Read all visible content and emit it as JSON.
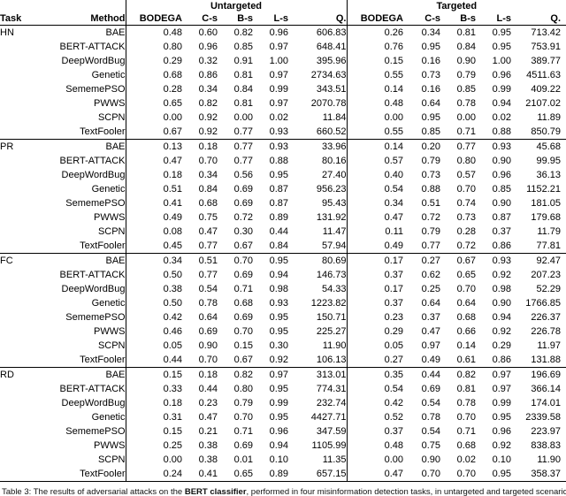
{
  "table": {
    "group_headers": {
      "untargeted": "Untargeted",
      "targeted": "Targeted"
    },
    "col_headers": {
      "task": "Task",
      "method": "Method"
    },
    "metrics": [
      "BODEGA",
      "C-s",
      "B-s",
      "L-s",
      "Q."
    ],
    "sections": [
      {
        "task": "HN",
        "rows": [
          {
            "method": "BAE",
            "u": [
              "0.48",
              "0.60",
              "0.82",
              "0.96",
              "606.83"
            ],
            "ub": [
              0,
              0,
              0,
              0,
              0
            ],
            "t": [
              "0.26",
              "0.34",
              "0.81",
              "0.95",
              "713.42"
            ],
            "tb": [
              0,
              0,
              0,
              0,
              0
            ]
          },
          {
            "method": "BERT-ATTACK",
            "u": [
              "0.80",
              "0.96",
              "0.85",
              "0.97",
              "648.41"
            ],
            "ub": [
              1,
              1,
              0,
              0,
              0
            ],
            "t": [
              "0.76",
              "0.95",
              "0.84",
              "0.95",
              "753.91"
            ],
            "tb": [
              1,
              1,
              0,
              0,
              0
            ]
          },
          {
            "method": "DeepWordBug",
            "u": [
              "0.29",
              "0.32",
              "0.91",
              "1.00",
              "395.96"
            ],
            "ub": [
              0,
              0,
              1,
              1,
              0
            ],
            "t": [
              "0.15",
              "0.16",
              "0.90",
              "1.00",
              "389.77"
            ],
            "tb": [
              0,
              0,
              1,
              1,
              0
            ]
          },
          {
            "method": "Genetic",
            "u": [
              "0.68",
              "0.86",
              "0.81",
              "0.97",
              "2734.63"
            ],
            "ub": [
              0,
              0,
              0,
              0,
              0
            ],
            "t": [
              "0.55",
              "0.73",
              "0.79",
              "0.96",
              "4511.63"
            ],
            "tb": [
              0,
              0,
              0,
              0,
              0
            ]
          },
          {
            "method": "SememePSO",
            "u": [
              "0.28",
              "0.34",
              "0.84",
              "0.99",
              "343.51"
            ],
            "ub": [
              0,
              0,
              0,
              0,
              0
            ],
            "t": [
              "0.14",
              "0.16",
              "0.85",
              "0.99",
              "409.22"
            ],
            "tb": [
              0,
              0,
              0,
              0,
              0
            ]
          },
          {
            "method": "PWWS",
            "u": [
              "0.65",
              "0.82",
              "0.81",
              "0.97",
              "2070.78"
            ],
            "ub": [
              0,
              0,
              0,
              0,
              0
            ],
            "t": [
              "0.48",
              "0.64",
              "0.78",
              "0.94",
              "2107.02"
            ],
            "tb": [
              0,
              0,
              0,
              0,
              0
            ]
          },
          {
            "method": "SCPN",
            "u": [
              "0.00",
              "0.92",
              "0.00",
              "0.02",
              "11.84"
            ],
            "ub": [
              0,
              0,
              0,
              0,
              0
            ],
            "t": [
              "0.00",
              "0.95",
              "0.00",
              "0.02",
              "11.89"
            ],
            "tb": [
              0,
              1,
              0,
              0,
              0
            ]
          },
          {
            "method": "TextFooler",
            "u": [
              "0.67",
              "0.92",
              "0.77",
              "0.93",
              "660.52"
            ],
            "ub": [
              0,
              0,
              0,
              0,
              0
            ],
            "t": [
              "0.55",
              "0.85",
              "0.71",
              "0.88",
              "850.79"
            ],
            "tb": [
              0,
              0,
              0,
              0,
              0
            ]
          }
        ]
      },
      {
        "task": "PR",
        "rows": [
          {
            "method": "BAE",
            "u": [
              "0.13",
              "0.18",
              "0.77",
              "0.93",
              "33.96"
            ],
            "ub": [
              0,
              0,
              1,
              0,
              0
            ],
            "t": [
              "0.14",
              "0.20",
              "0.77",
              "0.93",
              "45.68"
            ],
            "tb": [
              0,
              0,
              0,
              0,
              0
            ]
          },
          {
            "method": "BERT-ATTACK",
            "u": [
              "0.47",
              "0.70",
              "0.77",
              "0.88",
              "80.16"
            ],
            "ub": [
              0,
              0,
              0,
              0,
              0
            ],
            "t": [
              "0.57",
              "0.79",
              "0.80",
              "0.90",
              "99.95"
            ],
            "tb": [
              1,
              0,
              1,
              0,
              0
            ]
          },
          {
            "method": "DeepWordBug",
            "u": [
              "0.18",
              "0.34",
              "0.56",
              "0.95",
              "27.40"
            ],
            "ub": [
              0,
              0,
              0,
              1,
              0
            ],
            "t": [
              "0.40",
              "0.73",
              "0.57",
              "0.96",
              "36.13"
            ],
            "tb": [
              0,
              0,
              0,
              1,
              0
            ]
          },
          {
            "method": "Genetic",
            "u": [
              "0.51",
              "0.84",
              "0.69",
              "0.87",
              "956.23"
            ],
            "ub": [
              1,
              1,
              0,
              0,
              0
            ],
            "t": [
              "0.54",
              "0.88",
              "0.70",
              "0.85",
              "1152.21"
            ],
            "tb": [
              0,
              1,
              0,
              0,
              0
            ]
          },
          {
            "method": "SememePSO",
            "u": [
              "0.41",
              "0.68",
              "0.69",
              "0.87",
              "95.43"
            ],
            "ub": [
              0,
              0,
              0,
              0,
              0
            ],
            "t": [
              "0.34",
              "0.51",
              "0.74",
              "0.90",
              "181.05"
            ],
            "tb": [
              0,
              0,
              0,
              0,
              0
            ]
          },
          {
            "method": "PWWS",
            "u": [
              "0.49",
              "0.75",
              "0.72",
              "0.89",
              "131.92"
            ],
            "ub": [
              0,
              0,
              0,
              0,
              0
            ],
            "t": [
              "0.47",
              "0.72",
              "0.73",
              "0.87",
              "179.68"
            ],
            "tb": [
              0,
              0,
              0,
              0,
              0
            ]
          },
          {
            "method": "SCPN",
            "u": [
              "0.08",
              "0.47",
              "0.30",
              "0.44",
              "11.47"
            ],
            "ub": [
              0,
              0,
              0,
              0,
              0
            ],
            "t": [
              "0.11",
              "0.79",
              "0.28",
              "0.37",
              "11.79"
            ],
            "tb": [
              0,
              0,
              0,
              0,
              0
            ]
          },
          {
            "method": "TextFooler",
            "u": [
              "0.45",
              "0.77",
              "0.67",
              "0.84",
              "57.94"
            ],
            "ub": [
              0,
              0,
              0,
              0,
              0
            ],
            "t": [
              "0.49",
              "0.77",
              "0.72",
              "0.86",
              "77.81"
            ],
            "tb": [
              0,
              0,
              0,
              0,
              0
            ]
          }
        ]
      },
      {
        "task": "FC",
        "rows": [
          {
            "method": "BAE",
            "u": [
              "0.34",
              "0.51",
              "0.70",
              "0.95",
              "80.69"
            ],
            "ub": [
              0,
              0,
              0,
              0,
              0
            ],
            "t": [
              "0.17",
              "0.27",
              "0.67",
              "0.93",
              "92.47"
            ],
            "tb": [
              0,
              0,
              0,
              0,
              0
            ]
          },
          {
            "method": "BERT-ATTACK",
            "u": [
              "0.50",
              "0.77",
              "0.69",
              "0.94",
              "146.73"
            ],
            "ub": [
              1,
              0,
              0,
              0,
              0
            ],
            "t": [
              "0.37",
              "0.62",
              "0.65",
              "0.92",
              "207.23"
            ],
            "tb": [
              1,
              0,
              0,
              0,
              0
            ]
          },
          {
            "method": "DeepWordBug",
            "u": [
              "0.38",
              "0.54",
              "0.71",
              "0.98",
              "54.33"
            ],
            "ub": [
              0,
              0,
              1,
              1,
              0
            ],
            "t": [
              "0.17",
              "0.25",
              "0.70",
              "0.98",
              "52.29"
            ],
            "tb": [
              0,
              0,
              1,
              1,
              0
            ]
          },
          {
            "method": "Genetic",
            "u": [
              "0.50",
              "0.78",
              "0.68",
              "0.93",
              "1223.82"
            ],
            "ub": [
              0,
              0,
              0,
              0,
              0
            ],
            "t": [
              "0.37",
              "0.64",
              "0.64",
              "0.90",
              "1766.85"
            ],
            "tb": [
              0,
              0,
              0,
              0,
              0
            ]
          },
          {
            "method": "SememePSO",
            "u": [
              "0.42",
              "0.64",
              "0.69",
              "0.95",
              "150.71"
            ],
            "ub": [
              0,
              0,
              0,
              0,
              0
            ],
            "t": [
              "0.23",
              "0.37",
              "0.68",
              "0.94",
              "226.37"
            ],
            "tb": [
              0,
              0,
              0,
              0,
              0
            ]
          },
          {
            "method": "PWWS",
            "u": [
              "0.46",
              "0.69",
              "0.70",
              "0.95",
              "225.27"
            ],
            "ub": [
              0,
              0,
              0,
              0,
              0
            ],
            "t": [
              "0.29",
              "0.47",
              "0.66",
              "0.92",
              "226.78"
            ],
            "tb": [
              0,
              0,
              0,
              0,
              0
            ]
          },
          {
            "method": "SCPN",
            "u": [
              "0.05",
              "0.90",
              "0.15",
              "0.30",
              "11.90"
            ],
            "ub": [
              0,
              1,
              0,
              0,
              0
            ],
            "t": [
              "0.05",
              "0.97",
              "0.14",
              "0.29",
              "11.97"
            ],
            "tb": [
              0,
              1,
              0,
              0,
              0
            ]
          },
          {
            "method": "TextFooler",
            "u": [
              "0.44",
              "0.70",
              "0.67",
              "0.92",
              "106.13"
            ],
            "ub": [
              0,
              0,
              0,
              0,
              0
            ],
            "t": [
              "0.27",
              "0.49",
              "0.61",
              "0.86",
              "131.88"
            ],
            "tb": [
              0,
              0,
              0,
              0,
              0
            ]
          }
        ]
      },
      {
        "task": "RD",
        "rows": [
          {
            "method": "BAE",
            "u": [
              "0.15",
              "0.18",
              "0.82",
              "0.97",
              "313.01"
            ],
            "ub": [
              0,
              0,
              1,
              0,
              0
            ],
            "t": [
              "0.35",
              "0.44",
              "0.82",
              "0.97",
              "196.69"
            ],
            "tb": [
              0,
              0,
              1,
              0,
              0
            ]
          },
          {
            "method": "BERT-ATTACK",
            "u": [
              "0.33",
              "0.44",
              "0.80",
              "0.95",
              "774.31"
            ],
            "ub": [
              1,
              0,
              0,
              0,
              0
            ],
            "t": [
              "0.54",
              "0.69",
              "0.81",
              "0.97",
              "366.14"
            ],
            "tb": [
              1,
              0,
              0,
              0,
              0
            ]
          },
          {
            "method": "DeepWordBug",
            "u": [
              "0.18",
              "0.23",
              "0.79",
              "0.99",
              "232.74"
            ],
            "ub": [
              0,
              0,
              0,
              1,
              0
            ],
            "t": [
              "0.42",
              "0.54",
              "0.78",
              "0.99",
              "174.01"
            ],
            "tb": [
              0,
              0,
              0,
              1,
              0
            ]
          },
          {
            "method": "Genetic",
            "u": [
              "0.31",
              "0.47",
              "0.70",
              "0.95",
              "4427.71"
            ],
            "ub": [
              0,
              1,
              0,
              0,
              0
            ],
            "t": [
              "0.52",
              "0.78",
              "0.70",
              "0.95",
              "2339.58"
            ],
            "tb": [
              0,
              0,
              0,
              0,
              0
            ]
          },
          {
            "method": "SememePSO",
            "u": [
              "0.15",
              "0.21",
              "0.71",
              "0.96",
              "347.59"
            ],
            "ub": [
              0,
              0,
              0,
              0,
              0
            ],
            "t": [
              "0.37",
              "0.54",
              "0.71",
              "0.96",
              "223.97"
            ],
            "tb": [
              0,
              0,
              0,
              0,
              0
            ]
          },
          {
            "method": "PWWS",
            "u": [
              "0.25",
              "0.38",
              "0.69",
              "0.94",
              "1105.99"
            ],
            "ub": [
              0,
              0,
              0,
              0,
              0
            ],
            "t": [
              "0.48",
              "0.75",
              "0.68",
              "0.92",
              "838.83"
            ],
            "tb": [
              0,
              0,
              0,
              0,
              0
            ]
          },
          {
            "method": "SCPN",
            "u": [
              "0.00",
              "0.38",
              "0.01",
              "0.10",
              "11.35"
            ],
            "ub": [
              0,
              0,
              0,
              0,
              0
            ],
            "t": [
              "0.00",
              "0.90",
              "0.02",
              "0.10",
              "11.90"
            ],
            "tb": [
              0,
              1,
              0,
              0,
              0
            ]
          },
          {
            "method": "TextFooler",
            "u": [
              "0.24",
              "0.41",
              "0.65",
              "0.89",
              "657.15"
            ],
            "ub": [
              0,
              0,
              0,
              0,
              0
            ],
            "t": [
              "0.47",
              "0.70",
              "0.70",
              "0.95",
              "358.37"
            ],
            "tb": [
              0,
              0,
              0,
              0,
              0
            ]
          }
        ]
      }
    ],
    "caption": {
      "prefix": "Table 3: The results of adversarial attacks on the ",
      "emphasis": "BERT classifier",
      "suffix": ", performed in four misinformation detection tasks, in untargeted and targeted scenarios."
    }
  },
  "colors": {
    "text": "#000000",
    "background": "#ffffff",
    "rule": "#000000"
  }
}
